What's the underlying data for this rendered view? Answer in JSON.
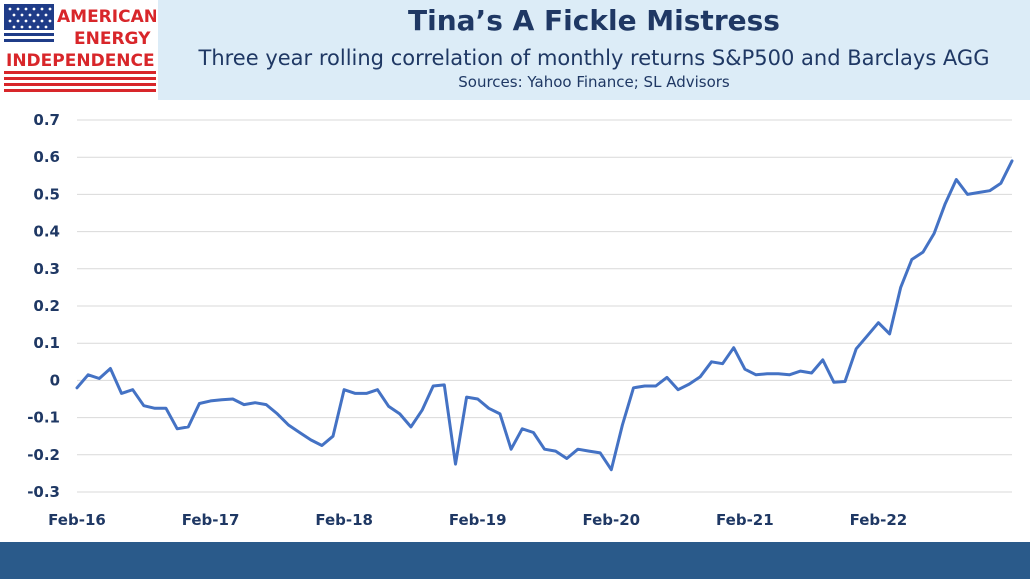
{
  "logo": {
    "line1": "AMERICAN",
    "line2": "ENERGY",
    "line3": "INDEPENDENCE",
    "colors": {
      "red": "#d8262a",
      "blue": "#1f3c88"
    }
  },
  "header": {
    "title": "Tina’s A Fickle Mistress",
    "subtitle": "Three year rolling correlation of monthly returns S&P500 and Barclays AGG",
    "sources": "Sources: Yahoo Finance; SL Advisors"
  },
  "colors": {
    "title_band": "#dcecf7",
    "text": "#1f3864",
    "line": "#4472c4",
    "footer_bar": "#2a5a8a"
  },
  "chart_data": {
    "type": "line",
    "title": "",
    "xlabel": "",
    "ylabel": "",
    "ylim": [
      -0.3,
      0.7
    ],
    "yticks": [
      0.7,
      0.6,
      0.5,
      0.4,
      0.3,
      0.2,
      0.1,
      0,
      -0.1,
      -0.2,
      -0.3
    ],
    "ytick_labels": [
      "0.7",
      "0.6",
      "0.5",
      "0.4",
      "0.3",
      "0.2",
      "0.1",
      "0",
      "-0.1",
      "-0.2",
      "-0.3"
    ],
    "xtick_labels": [
      "Feb-16",
      "Feb-17",
      "Feb-18",
      "Feb-19",
      "Feb-20",
      "Feb-21",
      "Feb-22"
    ],
    "x_start": "Feb-16",
    "frequency": "monthly",
    "grid": true,
    "series": [
      {
        "values": [
          -0.02,
          0.015,
          0.005,
          0.032,
          -0.035,
          -0.025,
          -0.068,
          -0.075,
          -0.075,
          -0.13,
          -0.125,
          -0.062,
          -0.055,
          -0.052,
          -0.05,
          -0.065,
          -0.06,
          -0.065,
          -0.09,
          -0.12,
          -0.14,
          -0.16,
          -0.175,
          -0.15,
          -0.025,
          -0.035,
          -0.035,
          -0.025,
          -0.07,
          -0.09,
          -0.125,
          -0.08,
          -0.015,
          -0.012,
          -0.225,
          -0.045,
          -0.05,
          -0.075,
          -0.09,
          -0.185,
          -0.13,
          -0.14,
          -0.185,
          -0.19,
          -0.21,
          -0.185,
          -0.19,
          -0.195,
          -0.24,
          -0.12,
          -0.02,
          -0.015,
          -0.015,
          0.008,
          -0.025,
          -0.01,
          0.01,
          0.05,
          0.045,
          0.088,
          0.03,
          0.015,
          0.018,
          0.018,
          0.015,
          0.025,
          0.02,
          0.055,
          -0.005,
          -0.003,
          0.085,
          0.12,
          0.155,
          0.125,
          0.25,
          0.325,
          0.345,
          0.395,
          0.475,
          0.54,
          0.5,
          0.505,
          0.51,
          0.53,
          0.59
        ]
      }
    ]
  }
}
